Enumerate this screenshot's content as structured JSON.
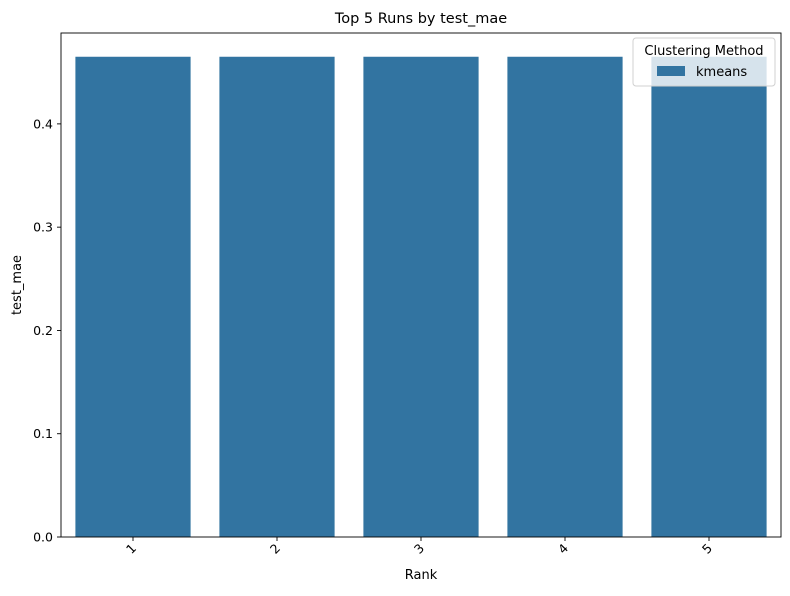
{
  "chart_data": {
    "type": "bar",
    "title": "Top 5 Runs by test_mae",
    "xlabel": "Rank",
    "ylabel": "test_mae",
    "categories": [
      "1",
      "2",
      "3",
      "4",
      "5"
    ],
    "series": [
      {
        "name": "kmeans",
        "values": [
          0.465,
          0.465,
          0.465,
          0.465,
          0.465
        ],
        "color": "#3274a1"
      }
    ],
    "ylim": [
      0,
      0.488
    ],
    "yticks": [
      "0.0",
      "0.1",
      "0.2",
      "0.3",
      "0.4"
    ],
    "grid": false,
    "legend": {
      "title": "Clustering Method",
      "placement": "top-right"
    }
  }
}
